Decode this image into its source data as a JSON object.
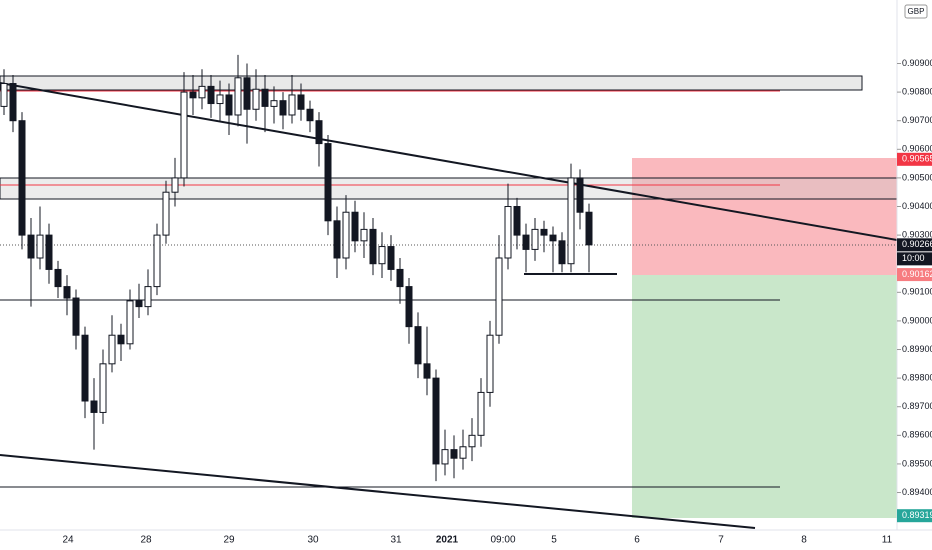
{
  "chart_data": {
    "type": "candlestick",
    "currency": "GBP",
    "ylim": [
      0.89269,
      0.91122
    ],
    "yticks": [
      {
        "value": 0.909,
        "label": "0.90900"
      },
      {
        "value": 0.908,
        "label": "0.90800"
      },
      {
        "value": 0.907,
        "label": "0.90700"
      },
      {
        "value": 0.906,
        "label": "0.90600"
      },
      {
        "value": 0.905,
        "label": "0.90500"
      },
      {
        "value": 0.904,
        "label": "0.90400"
      },
      {
        "value": 0.903,
        "label": "0.90300"
      },
      {
        "value": 0.901,
        "label": "0.90100"
      },
      {
        "value": 0.9,
        "label": "0.90000"
      },
      {
        "value": 0.899,
        "label": "0.89900"
      },
      {
        "value": 0.898,
        "label": "0.89800"
      },
      {
        "value": 0.897,
        "label": "0.89700"
      },
      {
        "value": 0.896,
        "label": "0.89600"
      },
      {
        "value": 0.895,
        "label": "0.89500"
      },
      {
        "value": 0.894,
        "label": "0.89400"
      }
    ],
    "x_labels": [
      "24",
      "28",
      "29",
      "30",
      "31",
      "2021",
      "09:00",
      "5",
      "6",
      "7",
      "8",
      "11"
    ],
    "open": [
      0.9075,
      0.9083,
      0.907,
      0.903,
      0.9022,
      0.903,
      0.9018,
      0.9012,
      0.9008,
      0.8995,
      0.8972,
      0.8968,
      0.8985,
      0.8995,
      0.8992,
      0.9007,
      0.9005,
      0.9012,
      0.903,
      0.9045,
      0.905,
      0.908,
      0.9078,
      0.9082,
      0.9076,
      0.9079,
      0.9072,
      0.9085,
      0.9074,
      0.9081,
      0.9075,
      0.9077,
      0.9072,
      0.9079,
      0.9074,
      0.907,
      0.9062,
      0.9035,
      0.9022,
      0.9038,
      0.9028,
      0.9032,
      0.902,
      0.9026,
      0.9018,
      0.9012,
      0.8998,
      0.8985,
      0.898,
      0.895,
      0.8955,
      0.8952,
      0.8956,
      0.896,
      0.8975,
      0.8995,
      0.9022,
      0.904,
      0.903,
      0.9025,
      0.9032,
      0.903,
      0.9028,
      0.902,
      0.905,
      0.9038
    ],
    "high": [
      0.9088,
      0.9086,
      0.9073,
      0.9036,
      0.904,
      0.9034,
      0.9021,
      0.9016,
      0.9011,
      0.8998,
      0.898,
      0.899,
      0.9002,
      0.8999,
      0.9011,
      0.9013,
      0.9018,
      0.9034,
      0.9049,
      0.9057,
      0.9087,
      0.9086,
      0.9088,
      0.9086,
      0.9084,
      0.9083,
      0.9093,
      0.909,
      0.9088,
      0.9086,
      0.9082,
      0.908,
      0.9086,
      0.9083,
      0.9077,
      0.9073,
      0.9065,
      0.904,
      0.9044,
      0.9042,
      0.9038,
      0.9036,
      0.9031,
      0.903,
      0.9022,
      0.9015,
      0.9003,
      0.8998,
      0.8983,
      0.8962,
      0.896,
      0.8962,
      0.8966,
      0.898,
      0.9,
      0.903,
      0.9048,
      0.9043,
      0.9034,
      0.9036,
      0.9035,
      0.9033,
      0.9031,
      0.9055,
      0.9053,
      0.9041
    ],
    "low": [
      0.9072,
      0.9066,
      0.9025,
      0.9005,
      0.9018,
      0.9013,
      0.9008,
      0.9002,
      0.899,
      0.8966,
      0.8955,
      0.8964,
      0.8982,
      0.8986,
      0.899,
      0.9001,
      0.9002,
      0.9009,
      0.9027,
      0.904,
      0.9047,
      0.9072,
      0.9074,
      0.9071,
      0.907,
      0.9065,
      0.9068,
      0.9062,
      0.907,
      0.9066,
      0.9069,
      0.9067,
      0.9069,
      0.907,
      0.9066,
      0.9054,
      0.903,
      0.9015,
      0.9018,
      0.9024,
      0.9022,
      0.9016,
      0.9015,
      0.9014,
      0.9006,
      0.8992,
      0.898,
      0.8974,
      0.8944,
      0.8946,
      0.8945,
      0.8948,
      0.8951,
      0.8956,
      0.897,
      0.8992,
      0.9018,
      0.9025,
      0.9017,
      0.9021,
      0.9024,
      0.9017,
      0.9017,
      0.9017,
      0.9032,
      0.9017
    ],
    "close": [
      0.9083,
      0.907,
      0.903,
      0.9022,
      0.903,
      0.9018,
      0.9012,
      0.9008,
      0.8995,
      0.8972,
      0.8968,
      0.8985,
      0.8995,
      0.8992,
      0.9007,
      0.9005,
      0.9012,
      0.903,
      0.9045,
      0.905,
      0.908,
      0.9078,
      0.9082,
      0.9076,
      0.9079,
      0.9072,
      0.9085,
      0.9074,
      0.9081,
      0.9075,
      0.9077,
      0.9072,
      0.9079,
      0.9074,
      0.907,
      0.9062,
      0.9035,
      0.9022,
      0.9038,
      0.9028,
      0.9032,
      0.902,
      0.9026,
      0.9018,
      0.9012,
      0.8998,
      0.8985,
      0.898,
      0.895,
      0.8955,
      0.8952,
      0.8956,
      0.896,
      0.8975,
      0.8995,
      0.9022,
      0.904,
      0.903,
      0.9025,
      0.9032,
      0.903,
      0.9028,
      0.902,
      0.905,
      0.9038,
      0.90266
    ],
    "stop_price": 0.90565,
    "last_price": 0.90266,
    "countdown": "10:00",
    "entry_price": 0.90162,
    "target_price": 0.89319
  }
}
